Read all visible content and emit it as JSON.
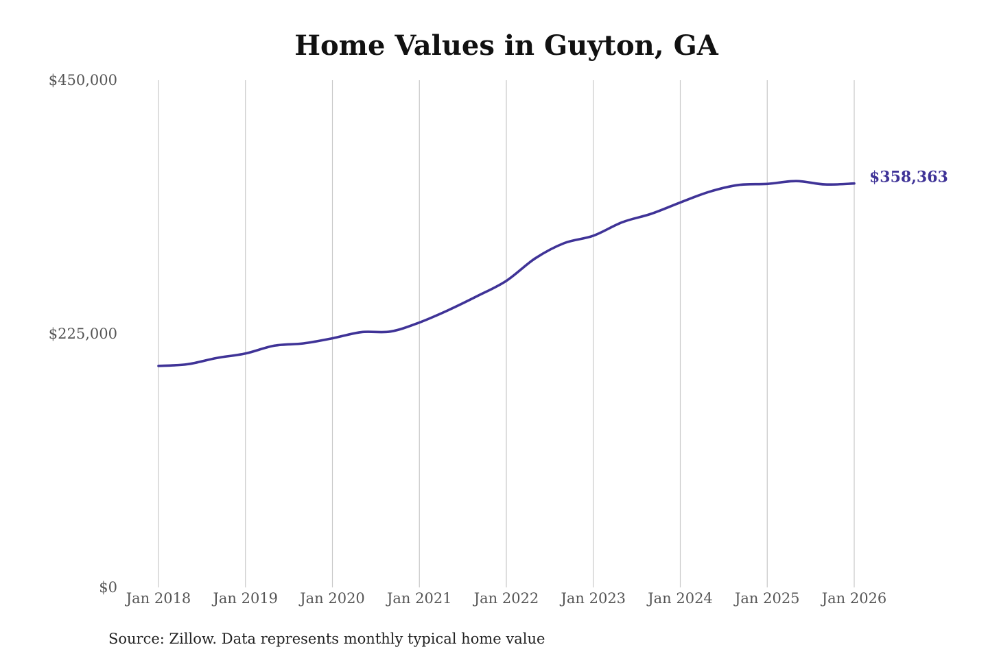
{
  "chart_data": {
    "type": "line",
    "title": "Home Values in Guyton, GA",
    "xlabel": "",
    "ylabel": "",
    "x_ticks": [
      "Jan 2018",
      "Jan 2019",
      "Jan 2020",
      "Jan 2021",
      "Jan 2022",
      "Jan 2023",
      "Jan 2024",
      "Jan 2025",
      "Jan 2026"
    ],
    "y_ticks": [
      "$0",
      "$225,000",
      "$450,000"
    ],
    "ylim": [
      0,
      450000
    ],
    "xlim": [
      "2018-01",
      "2026-01"
    ],
    "grid": "vertical lines at each January",
    "legend": "none",
    "end_label": "$358,363",
    "source_note": "Source: Zillow. Data represents monthly typical home value",
    "line_color": "#3f3397",
    "series": [
      {
        "name": "",
        "points": [
          [
            "2018-01",
            196500
          ],
          [
            "2018-05",
            198000
          ],
          [
            "2018-09",
            203500
          ],
          [
            "2019-01",
            207500
          ],
          [
            "2019-05",
            214500
          ],
          [
            "2019-09",
            216500
          ],
          [
            "2020-01",
            221000
          ],
          [
            "2020-05",
            226500
          ],
          [
            "2020-09",
            227000
          ],
          [
            "2021-01",
            235000
          ],
          [
            "2021-05",
            246000
          ],
          [
            "2021-09",
            258500
          ],
          [
            "2022-01",
            272000
          ],
          [
            "2022-05",
            292000
          ],
          [
            "2022-09",
            305500
          ],
          [
            "2023-01",
            312000
          ],
          [
            "2023-05",
            324000
          ],
          [
            "2023-09",
            331500
          ],
          [
            "2024-01",
            341500
          ],
          [
            "2024-05",
            351000
          ],
          [
            "2024-09",
            357000
          ],
          [
            "2025-01",
            358000
          ],
          [
            "2025-05",
            360500
          ],
          [
            "2025-09",
            357500
          ],
          [
            "2026-01",
            358363
          ]
        ]
      }
    ]
  }
}
